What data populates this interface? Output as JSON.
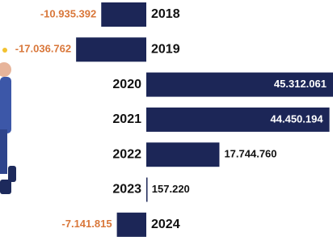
{
  "chart_data": {
    "type": "bar",
    "orientation": "horizontal",
    "categories": [
      "2018",
      "2019",
      "2020",
      "2021",
      "2022",
      "2023",
      "2024"
    ],
    "values": [
      -10935392,
      -17036762,
      45312061,
      44450194,
      17744760,
      157220,
      -7141815
    ],
    "value_labels": [
      "-10.935.392",
      "-17.036.762",
      "45.312.061",
      "44.450.194",
      "17.744.760",
      "157.220",
      "-7.141.815"
    ],
    "color": "#1c2657",
    "negative_label_color": "#d9773a"
  }
}
